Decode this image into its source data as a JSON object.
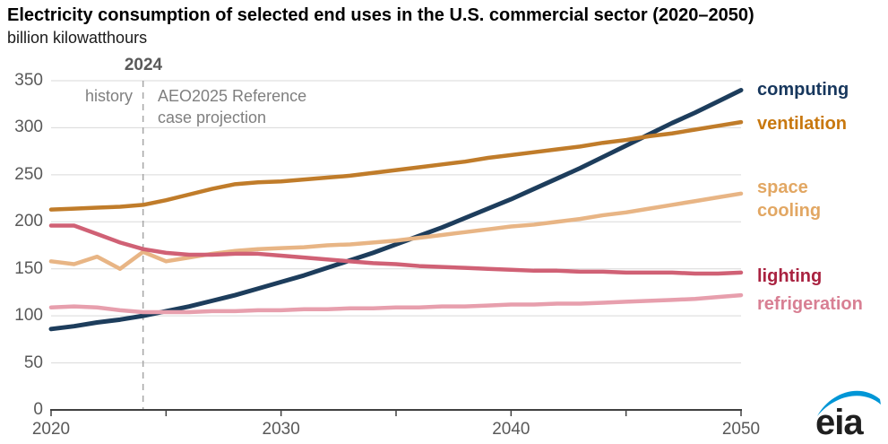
{
  "header": {
    "title": "Electricity consumption of selected end uses in the U.S. commercial sector (2020–2050)",
    "subtitle": "billion kilowatthours"
  },
  "annotations": {
    "divider_year": "2024",
    "history_label": "history",
    "projection_line1": "AEO2025 Reference",
    "projection_line2": "case projection"
  },
  "logo": {
    "text": "eia",
    "swoosh_color": "#0096d6",
    "text_color": "#1f1f1f"
  },
  "chart_data": {
    "type": "line",
    "title": "Electricity consumption of selected end uses in the U.S. commercial sector (2020–2050)",
    "ylabel": "billion kilowatthours",
    "xlim": [
      2020,
      2050
    ],
    "ylim": [
      0,
      350
    ],
    "grid": true,
    "legend_position": "right",
    "divider_x": 2024,
    "x_ticks": [
      2020,
      2025,
      2030,
      2035,
      2040,
      2045,
      2050
    ],
    "x_tick_labels": [
      2020,
      2030,
      2040,
      2050
    ],
    "y_ticks": [
      0,
      50,
      100,
      150,
      200,
      250,
      300,
      350
    ],
    "colors": {
      "grid": "#d9d9d9",
      "axis": "#404040",
      "divider": "#a6a6a6"
    },
    "x": [
      2020,
      2021,
      2022,
      2023,
      2024,
      2025,
      2026,
      2027,
      2028,
      2029,
      2030,
      2031,
      2032,
      2033,
      2034,
      2035,
      2036,
      2037,
      2038,
      2039,
      2040,
      2041,
      2042,
      2043,
      2044,
      2045,
      2046,
      2047,
      2048,
      2049,
      2050
    ],
    "series": [
      {
        "id": "computing",
        "label_lines": [
          "computing"
        ],
        "color": "#1d3d5c",
        "label_color": "#17375d",
        "line_width": 5,
        "label_dy": 0,
        "values": [
          86,
          89,
          93,
          96,
          100,
          105,
          110,
          116,
          122,
          129,
          136,
          143,
          151,
          159,
          167,
          176,
          185,
          194,
          204,
          214,
          224,
          235,
          246,
          257,
          269,
          281,
          293,
          305,
          316,
          328,
          340
        ]
      },
      {
        "id": "ventilation",
        "label_lines": [
          "ventilation"
        ],
        "color": "#c07c2a",
        "label_color": "#c8780f",
        "line_width": 4.5,
        "label_dy": 2,
        "values": [
          213,
          214,
          215,
          216,
          218,
          223,
          229,
          235,
          240,
          242,
          243,
          245,
          247,
          249,
          252,
          255,
          258,
          261,
          264,
          268,
          271,
          274,
          277,
          280,
          284,
          287,
          291,
          294,
          298,
          302,
          306
        ]
      },
      {
        "id": "space-cooling",
        "label_lines": [
          "space",
          "cooling"
        ],
        "color": "#e8b585",
        "label_color": "#e2a763",
        "line_width": 4.5,
        "label_dy": 6,
        "values": [
          158,
          155,
          163,
          150,
          168,
          158,
          162,
          166,
          169,
          171,
          172,
          173,
          175,
          176,
          178,
          180,
          183,
          186,
          189,
          192,
          195,
          197,
          200,
          203,
          207,
          210,
          214,
          218,
          222,
          226,
          230
        ]
      },
      {
        "id": "lighting",
        "label_lines": [
          "lighting"
        ],
        "color": "#d06175",
        "label_color": "#a92240",
        "line_width": 4.5,
        "label_dy": 4,
        "values": [
          196,
          196,
          187,
          178,
          171,
          167,
          165,
          165,
          166,
          166,
          164,
          162,
          160,
          158,
          156,
          155,
          153,
          152,
          151,
          150,
          149,
          148,
          148,
          147,
          147,
          146,
          146,
          146,
          145,
          145,
          146
        ]
      },
      {
        "id": "refrigeration",
        "label_lines": [
          "refrigeration"
        ],
        "color": "#e79fad",
        "label_color": "#d87f93",
        "line_width": 4.5,
        "label_dy": 10,
        "values": [
          109,
          110,
          109,
          106,
          104,
          104,
          104,
          105,
          105,
          106,
          106,
          107,
          107,
          108,
          108,
          109,
          109,
          110,
          110,
          111,
          112,
          112,
          113,
          113,
          114,
          115,
          116,
          117,
          118,
          120,
          122
        ]
      }
    ]
  }
}
